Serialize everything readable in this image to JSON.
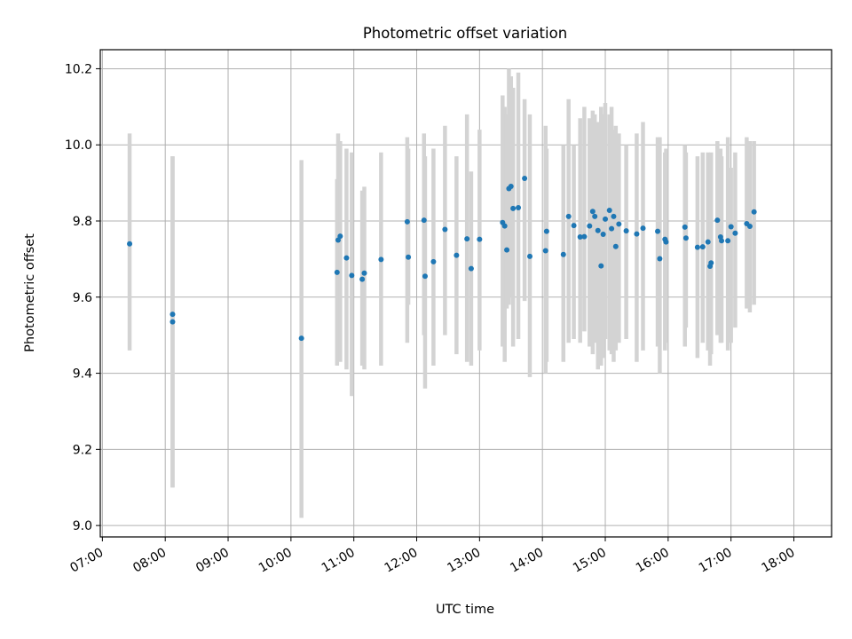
{
  "chart_data": {
    "type": "scatter",
    "title": "Photometric offset variation",
    "xlabel": "UTC time",
    "ylabel": "Photometric offset",
    "xlim": [
      "06:58",
      "18:36"
    ],
    "ylim": [
      8.97,
      10.25
    ],
    "x_ticks": [
      "07:00",
      "08:00",
      "09:00",
      "10:00",
      "11:00",
      "12:00",
      "13:00",
      "14:00",
      "15:00",
      "16:00",
      "17:00",
      "18:00"
    ],
    "y_ticks": [
      "9.0",
      "9.2",
      "9.4",
      "9.6",
      "9.8",
      "10.0",
      "10.2"
    ],
    "grid": true,
    "colors": {
      "points": "#1f77b4",
      "error_bars": "#d3d3d3",
      "grid": "#b0b0b0"
    },
    "series": [
      {
        "x": [
          "07:26",
          "08:07",
          "08:07",
          "10:10",
          "10:44",
          "10:45",
          "10:47",
          "10:53",
          "10:58",
          "11:08",
          "11:10",
          "11:26",
          "11:51",
          "11:52",
          "12:07",
          "12:08",
          "12:16",
          "12:27",
          "12:38",
          "12:48",
          "12:52",
          "13:00",
          "13:22",
          "13:24",
          "13:26",
          "13:28",
          "13:30",
          "13:32",
          "13:37",
          "13:43",
          "13:48",
          "14:03",
          "14:04",
          "14:20",
          "14:25",
          "14:30",
          "14:36",
          "14:40",
          "14:45",
          "14:48",
          "14:50",
          "14:53",
          "14:56",
          "14:58",
          "15:00",
          "15:04",
          "15:06",
          "15:08",
          "15:10",
          "15:13",
          "15:20",
          "15:30",
          "15:36",
          "15:50",
          "15:52",
          "15:57",
          "15:58",
          "16:16",
          "16:17",
          "16:28",
          "16:33",
          "16:38",
          "16:40",
          "16:41",
          "16:47",
          "16:50",
          "16:51",
          "16:57",
          "17:00",
          "17:04",
          "17:15",
          "17:18",
          "17:22"
        ],
        "y": [
          9.74,
          9.555,
          9.535,
          9.492,
          9.665,
          9.75,
          9.76,
          9.703,
          9.657,
          9.647,
          9.663,
          9.699,
          9.798,
          9.705,
          9.802,
          9.655,
          9.693,
          9.778,
          9.71,
          9.753,
          9.675,
          9.752,
          9.796,
          9.787,
          9.724,
          9.885,
          9.891,
          9.833,
          9.835,
          9.912,
          9.707,
          9.722,
          9.773,
          9.712,
          9.812,
          9.788,
          9.758,
          9.759,
          9.787,
          9.825,
          9.812,
          9.775,
          9.682,
          9.765,
          9.805,
          9.828,
          9.78,
          9.812,
          9.733,
          9.792,
          9.774,
          9.766,
          9.781,
          9.773,
          9.701,
          9.752,
          9.745,
          9.784,
          9.755,
          9.731,
          9.732,
          9.745,
          9.681,
          9.69,
          9.802,
          9.758,
          9.748,
          9.748,
          9.785,
          9.768,
          9.793,
          9.786,
          9.824
        ],
        "y_low": [
          9.46,
          9.1,
          9.1,
          9.02,
          9.42,
          9.49,
          9.43,
          9.41,
          9.34,
          9.42,
          9.41,
          9.42,
          9.48,
          9.58,
          9.5,
          9.36,
          9.42,
          9.5,
          9.45,
          9.43,
          9.42,
          9.46,
          9.47,
          9.43,
          9.57,
          9.58,
          9.6,
          9.47,
          9.49,
          9.59,
          9.39,
          9.4,
          9.43,
          9.43,
          9.48,
          9.49,
          9.48,
          9.51,
          9.47,
          9.45,
          9.48,
          9.41,
          9.42,
          9.44,
          9.49,
          9.46,
          9.45,
          9.43,
          9.46,
          9.48,
          9.49,
          9.43,
          9.46,
          9.47,
          9.4,
          9.46,
          9.48,
          9.47,
          9.52,
          9.44,
          9.48,
          9.46,
          9.42,
          9.45,
          9.5,
          9.48,
          9.48,
          9.46,
          9.48,
          9.52,
          9.57,
          9.56,
          9.58
        ],
        "y_high": [
          10.03,
          9.97,
          9.97,
          9.96,
          9.91,
          10.03,
          10.01,
          9.99,
          9.98,
          9.88,
          9.89,
          9.98,
          10.02,
          9.99,
          10.03,
          9.97,
          9.99,
          10.05,
          9.97,
          10.08,
          9.93,
          10.04,
          10.13,
          10.1,
          10.08,
          10.2,
          10.18,
          10.15,
          10.19,
          10.12,
          10.08,
          10.05,
          9.99,
          10.0,
          10.12,
          10.0,
          10.07,
          10.1,
          10.07,
          10.09,
          10.08,
          10.06,
          10.1,
          10.08,
          10.11,
          10.08,
          10.1,
          10.04,
          10.05,
          10.03,
          10.0,
          10.03,
          10.06,
          10.02,
          10.02,
          9.98,
          9.99,
          10.0,
          9.98,
          9.97,
          9.98,
          9.98,
          9.94,
          9.98,
          10.01,
          9.99,
          9.97,
          10.02,
          9.94,
          9.98,
          10.02,
          10.01,
          10.01
        ]
      }
    ]
  }
}
